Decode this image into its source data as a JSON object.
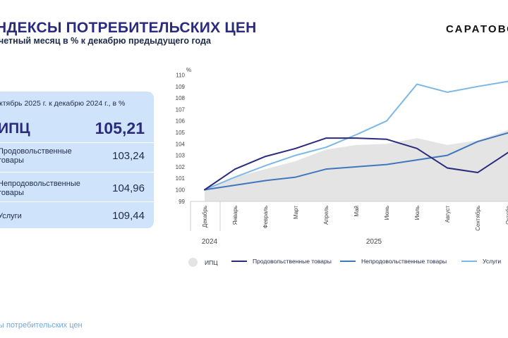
{
  "header": {
    "title": "НДЕКСЫ ПОТРЕБИТЕЛЬСКИХ ЦЕН",
    "subtitle": "четный месяц в % к декабрю предыдущего года",
    "brand": "САРАТОВС"
  },
  "card": {
    "title": "ктябрь 2025 г. к декабрю 2024 г., в %",
    "rows": [
      {
        "label": "ИПЦ",
        "value": "105,21"
      },
      {
        "label": "Продовольственные\nтовары",
        "value": "103,24"
      },
      {
        "label": "Непродовольственные\nтовары",
        "value": "104,96"
      },
      {
        "label": "Услуги",
        "value": "109,44"
      }
    ]
  },
  "footer": "ы потребительских цен",
  "colors": {
    "ipc": "#e4e4e4",
    "food": "#2b2b7e",
    "nonfood": "#3f77bc",
    "services": "#7cb8e6"
  },
  "chart_data": {
    "type": "line",
    "unit": "%",
    "x": [
      "Декабрь",
      "Январь",
      "Февраль",
      "Март",
      "Апрель",
      "Май",
      "Июнь",
      "Июль",
      "Август",
      "Сентябрь",
      "Октябрь"
    ],
    "x_visible": [
      "Декабрь",
      "Январь",
      "Февраль",
      "Март",
      "Апрель",
      "Май",
      "Июнь",
      "Июль",
      "Август",
      "Сентябрь",
      "Октябрь"
    ],
    "x_tick_labels": [
      "Декабрь",
      "Январь",
      "Февраль",
      "Март",
      "Апрель",
      "Май",
      "Июнь",
      "Июль",
      "Август",
      "Сентябрь",
      "Октябр"
    ],
    "year_labels": [
      "2024",
      "2025"
    ],
    "ylim": [
      99,
      110
    ],
    "yticks": [
      99,
      100,
      101,
      102,
      103,
      104,
      105,
      106,
      107,
      108,
      109,
      110
    ],
    "series": [
      {
        "name": "ИПЦ",
        "type": "area",
        "values": [
          100.0,
          101.1,
          101.8,
          102.5,
          103.5,
          103.9,
          104.0,
          104.5,
          103.9,
          104.3,
          105.21
        ]
      },
      {
        "name": "Продовольственные товары",
        "values": [
          100.0,
          101.8,
          102.9,
          103.6,
          104.5,
          104.5,
          104.4,
          103.6,
          101.9,
          101.5,
          103.24
        ]
      },
      {
        "name": "Непродовольственные товары",
        "values": [
          100.0,
          100.4,
          100.8,
          101.1,
          101.8,
          102.0,
          102.2,
          102.6,
          103.0,
          104.2,
          104.96
        ]
      },
      {
        "name": "Услуги",
        "values": [
          100.0,
          101.1,
          102.1,
          103.0,
          103.7,
          104.8,
          106.0,
          109.2,
          108.5,
          109.0,
          109.44
        ]
      }
    ],
    "legend": [
      "ИПЦ",
      "Продовольственные товары",
      "Непродовольственные товары",
      "Услуги"
    ],
    "legend_position": "bottom"
  }
}
